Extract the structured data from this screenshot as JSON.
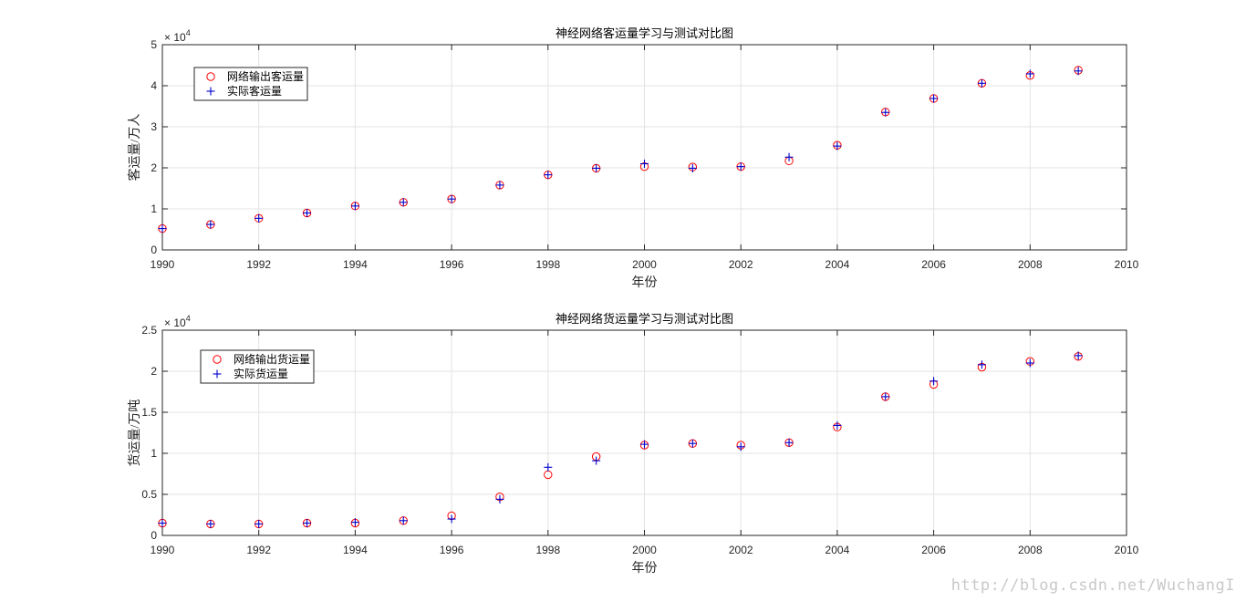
{
  "chart_data": [
    {
      "type": "scatter",
      "title": "神经网络客运量学习与测试对比图",
      "xlabel": "年份",
      "ylabel": "客运量/万人",
      "exponent_base": "× 10",
      "exponent_power": "4",
      "xlim": [
        1990,
        2010
      ],
      "ylim": [
        0,
        5
      ],
      "xticks": [
        "1990",
        "1992",
        "1994",
        "1996",
        "1998",
        "2000",
        "2002",
        "2004",
        "2006",
        "2008",
        "2010"
      ],
      "yticks": [
        "0",
        "1",
        "2",
        "3",
        "4",
        "5"
      ],
      "grid": true,
      "legend_position": "top-left",
      "x": [
        1990,
        1991,
        1992,
        1993,
        1994,
        1995,
        1996,
        1997,
        1998,
        1999,
        2000,
        2001,
        2002,
        2003,
        2004,
        2005,
        2006,
        2007,
        2008,
        2009
      ],
      "series": [
        {
          "name": "网络输出客运量",
          "marker": "circle",
          "color": "#ff0000",
          "values": [
            0.52,
            0.62,
            0.77,
            0.9,
            1.07,
            1.16,
            1.24,
            1.58,
            1.83,
            1.99,
            2.03,
            2.02,
            2.03,
            2.17,
            2.55,
            3.36,
            3.69,
            4.06,
            4.25,
            4.38
          ]
        },
        {
          "name": "实际客运量",
          "marker": "plus",
          "color": "#0000cc",
          "values": [
            0.52,
            0.62,
            0.77,
            0.9,
            1.07,
            1.16,
            1.24,
            1.58,
            1.83,
            1.99,
            2.1,
            1.99,
            2.03,
            2.26,
            2.53,
            3.35,
            3.69,
            4.06,
            4.29,
            4.36
          ]
        }
      ]
    },
    {
      "type": "scatter",
      "title": "神经网络货运量学习与测试对比图",
      "xlabel": "年份",
      "ylabel": "货运量/万吨",
      "exponent_base": "× 10",
      "exponent_power": "4",
      "xlim": [
        1990,
        2010
      ],
      "ylim": [
        0,
        2.5
      ],
      "xticks": [
        "1990",
        "1992",
        "1994",
        "1996",
        "1998",
        "2000",
        "2002",
        "2004",
        "2006",
        "2008",
        "2010"
      ],
      "yticks": [
        "0",
        "0.5",
        "1",
        "1.5",
        "2",
        "2.5"
      ],
      "grid": true,
      "legend_position": "top-left",
      "x": [
        1990,
        1991,
        1992,
        1993,
        1994,
        1995,
        1996,
        1997,
        1998,
        1999,
        2000,
        2001,
        2002,
        2003,
        2004,
        2005,
        2006,
        2007,
        2008,
        2009
      ],
      "series": [
        {
          "name": "网络输出货运量",
          "marker": "circle",
          "color": "#ff0000",
          "values": [
            0.15,
            0.14,
            0.14,
            0.15,
            0.15,
            0.18,
            0.24,
            0.47,
            0.74,
            0.96,
            1.1,
            1.12,
            1.1,
            1.13,
            1.32,
            1.69,
            1.84,
            2.05,
            2.12,
            2.18
          ]
        },
        {
          "name": "实际货运量",
          "marker": "plus",
          "color": "#0000cc",
          "values": [
            0.15,
            0.14,
            0.14,
            0.15,
            0.16,
            0.18,
            0.2,
            0.44,
            0.83,
            0.91,
            1.11,
            1.12,
            1.08,
            1.13,
            1.34,
            1.69,
            1.88,
            2.08,
            2.1,
            2.19
          ]
        }
      ]
    }
  ],
  "watermark": "http://blog.csdn.net/WuchangI"
}
